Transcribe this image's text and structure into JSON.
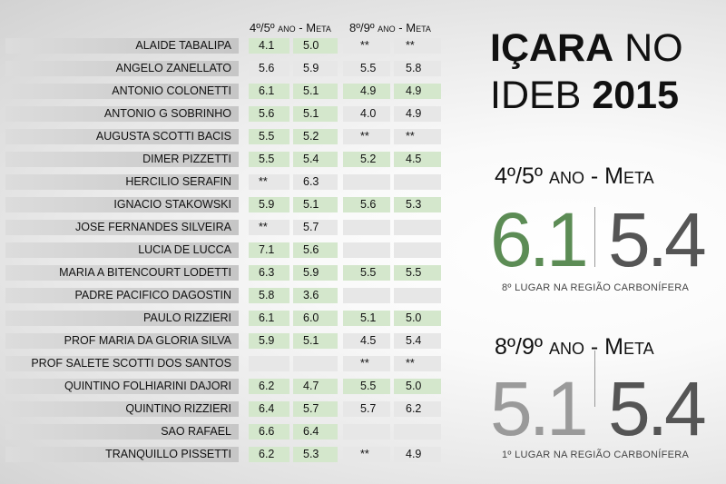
{
  "headers": {
    "col1": "4º/5º ano - Meta",
    "col2": "8º/9º ano - Meta"
  },
  "schools": [
    {
      "name": "ALAIDE TABALIPA",
      "a": "4.1",
      "b": "5.0",
      "c": "**",
      "d": "**",
      "ag": true,
      "bg": true,
      "cg": false,
      "dg": false
    },
    {
      "name": "ANGELO ZANELLATO",
      "a": "5.6",
      "b": "5.9",
      "c": "5.5",
      "d": "5.8",
      "ag": false,
      "bg": false,
      "cg": false,
      "dg": false
    },
    {
      "name": "ANTONIO COLONETTI",
      "a": "6.1",
      "b": "5.1",
      "c": "4.9",
      "d": "4.9",
      "ag": true,
      "bg": true,
      "cg": true,
      "dg": true
    },
    {
      "name": "ANTONIO G SOBRINHO",
      "a": "5.6",
      "b": "5.1",
      "c": "4.0",
      "d": "4.9",
      "ag": true,
      "bg": true,
      "cg": false,
      "dg": false
    },
    {
      "name": "AUGUSTA SCOTTI BACIS",
      "a": "5.5",
      "b": "5.2",
      "c": "**",
      "d": "**",
      "ag": true,
      "bg": true,
      "cg": false,
      "dg": false
    },
    {
      "name": "DIMER PIZZETTI",
      "a": "5.5",
      "b": "5.4",
      "c": "5.2",
      "d": "4.5",
      "ag": true,
      "bg": true,
      "cg": true,
      "dg": true
    },
    {
      "name": "HERCILIO SERAFIN",
      "a": "**",
      "b": "6.3",
      "c": "",
      "d": "",
      "ag": false,
      "bg": false,
      "cg": false,
      "dg": false
    },
    {
      "name": "IGNACIO STAKOWSKI",
      "a": "5.9",
      "b": "5.1",
      "c": "5.6",
      "d": "5.3",
      "ag": true,
      "bg": true,
      "cg": true,
      "dg": true
    },
    {
      "name": "JOSE FERNANDES SILVEIRA",
      "a": "**",
      "b": "5.7",
      "c": "",
      "d": "",
      "ag": false,
      "bg": false,
      "cg": false,
      "dg": false
    },
    {
      "name": "LUCIA DE LUCCA",
      "a": "7.1",
      "b": "5.6",
      "c": "",
      "d": "",
      "ag": true,
      "bg": true,
      "cg": false,
      "dg": false
    },
    {
      "name": "MARIA A BITENCOURT LODETTI",
      "a": "6.3",
      "b": "5.9",
      "c": "5.5",
      "d": "5.5",
      "ag": true,
      "bg": true,
      "cg": true,
      "dg": true
    },
    {
      "name": "PADRE PACIFICO DAGOSTIN",
      "a": "5.8",
      "b": "3.6",
      "c": "",
      "d": "",
      "ag": true,
      "bg": true,
      "cg": false,
      "dg": false
    },
    {
      "name": "PAULO RIZZIERI",
      "a": "6.1",
      "b": "6.0",
      "c": "5.1",
      "d": "5.0",
      "ag": true,
      "bg": true,
      "cg": true,
      "dg": true
    },
    {
      "name": "PROF MARIA DA GLORIA SILVA",
      "a": "5.9",
      "b": "5.1",
      "c": "4.5",
      "d": "5.4",
      "ag": true,
      "bg": true,
      "cg": false,
      "dg": false
    },
    {
      "name": "PROF SALETE SCOTTI DOS SANTOS",
      "a": "",
      "b": "",
      "c": "**",
      "d": "**",
      "ag": false,
      "bg": false,
      "cg": false,
      "dg": false
    },
    {
      "name": "QUINTINO FOLHIARINI DAJORI",
      "a": "6.2",
      "b": "4.7",
      "c": "5.5",
      "d": "5.0",
      "ag": true,
      "bg": true,
      "cg": true,
      "dg": true
    },
    {
      "name": "QUINTINO RIZZIERI",
      "a": "6.4",
      "b": "5.7",
      "c": "5.7",
      "d": "6.2",
      "ag": true,
      "bg": true,
      "cg": false,
      "dg": false
    },
    {
      "name": "SAO RAFAEL",
      "a": "6.6",
      "b": "6.4",
      "c": "",
      "d": "",
      "ag": true,
      "bg": true,
      "cg": false,
      "dg": false
    },
    {
      "name": "TRANQUILLO PISSETTI",
      "a": "6.2",
      "b": "5.3",
      "c": "**",
      "d": "4.9",
      "ag": true,
      "bg": true,
      "cg": false,
      "dg": false
    }
  ],
  "title": {
    "word1": "IÇARA",
    "word2": "NO",
    "word3": "IDEB",
    "year": "2015"
  },
  "section1": {
    "label": "4º/5º ano - Meta",
    "value": "6.1",
    "meta": "5.4",
    "rank": "8º LUGAR NA REGIÃO CARBONÍFERA"
  },
  "section2": {
    "label": "8º/9º ano - Meta",
    "value": "5.1",
    "meta": "5.4",
    "rank": "1º LUGAR NA REGIÃO CARBONÍFERA"
  },
  "colors": {
    "green": "#5c8c55",
    "darkgray": "#555555",
    "lightgray": "#9a9a9a",
    "cellGreen": "#d4e7cc",
    "cellGray": "#e7e7e7"
  }
}
